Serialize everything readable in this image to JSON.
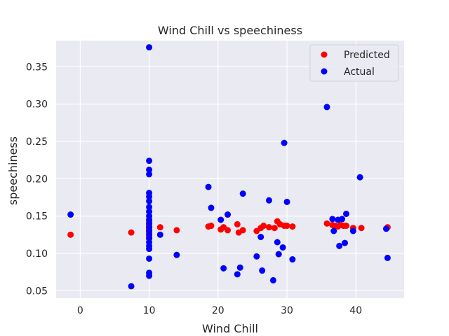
{
  "chart_data": {
    "type": "scatter",
    "title": "Wind Chill vs speechiness",
    "xlabel": "Wind Chill",
    "ylabel": "speechiness",
    "xlim": [
      -3.5,
      47
    ],
    "ylim": [
      0.04,
      0.385
    ],
    "xticks": [
      0,
      10,
      20,
      30,
      40
    ],
    "yticks": [
      0.05,
      0.1,
      0.15,
      0.2,
      0.25,
      0.3,
      0.35
    ],
    "grid": true,
    "legend_position": "top-right",
    "colors": {
      "Predicted": "#ff0000",
      "Actual": "#0000ff",
      "plot_bg": "#eaeaf2",
      "grid": "#ffffff"
    },
    "series": [
      {
        "name": "Predicted",
        "color": "#ff0000",
        "points": [
          [
            -1.4,
            0.125
          ],
          [
            7.4,
            0.128
          ],
          [
            10.0,
            0.122
          ],
          [
            10.0,
            0.125
          ],
          [
            10.0,
            0.128
          ],
          [
            10.0,
            0.13
          ],
          [
            10.0,
            0.132
          ],
          [
            10.0,
            0.134
          ],
          [
            10.0,
            0.136
          ],
          [
            10.0,
            0.138
          ],
          [
            10.0,
            0.14
          ],
          [
            10.0,
            0.143
          ],
          [
            11.6,
            0.135
          ],
          [
            14.0,
            0.131
          ],
          [
            18.6,
            0.136
          ],
          [
            19.0,
            0.137
          ],
          [
            20.4,
            0.132
          ],
          [
            20.8,
            0.135
          ],
          [
            21.4,
            0.131
          ],
          [
            22.8,
            0.139
          ],
          [
            23.0,
            0.128
          ],
          [
            23.6,
            0.131
          ],
          [
            25.6,
            0.13
          ],
          [
            26.2,
            0.134
          ],
          [
            26.6,
            0.137
          ],
          [
            27.4,
            0.135
          ],
          [
            28.2,
            0.134
          ],
          [
            28.6,
            0.143
          ],
          [
            29.0,
            0.139
          ],
          [
            29.6,
            0.137
          ],
          [
            30.0,
            0.137
          ],
          [
            30.8,
            0.136
          ],
          [
            35.8,
            0.14
          ],
          [
            36.6,
            0.138
          ],
          [
            37.0,
            0.137
          ],
          [
            37.4,
            0.136
          ],
          [
            37.8,
            0.138
          ],
          [
            38.2,
            0.137
          ],
          [
            38.6,
            0.137
          ],
          [
            39.6,
            0.134
          ],
          [
            40.8,
            0.134
          ],
          [
            44.6,
            0.135
          ]
        ]
      },
      {
        "name": "Actual",
        "color": "#0000ff",
        "points": [
          [
            -1.4,
            0.152
          ],
          [
            7.4,
            0.056
          ],
          [
            10.0,
            0.376
          ],
          [
            10.0,
            0.224
          ],
          [
            10.0,
            0.212
          ],
          [
            10.0,
            0.206
          ],
          [
            10.0,
            0.181
          ],
          [
            10.0,
            0.176
          ],
          [
            10.0,
            0.17
          ],
          [
            10.0,
            0.162
          ],
          [
            10.0,
            0.156
          ],
          [
            10.0,
            0.15
          ],
          [
            10.0,
            0.145
          ],
          [
            10.0,
            0.14
          ],
          [
            10.0,
            0.135
          ],
          [
            10.0,
            0.13
          ],
          [
            10.0,
            0.125
          ],
          [
            10.0,
            0.12
          ],
          [
            10.0,
            0.115
          ],
          [
            10.0,
            0.11
          ],
          [
            10.0,
            0.106
          ],
          [
            10.0,
            0.093
          ],
          [
            10.0,
            0.074
          ],
          [
            10.0,
            0.07
          ],
          [
            11.6,
            0.125
          ],
          [
            14.0,
            0.098
          ],
          [
            18.6,
            0.189
          ],
          [
            19.0,
            0.161
          ],
          [
            20.4,
            0.145
          ],
          [
            20.8,
            0.08
          ],
          [
            21.4,
            0.152
          ],
          [
            22.8,
            0.072
          ],
          [
            23.2,
            0.081
          ],
          [
            23.6,
            0.18
          ],
          [
            25.6,
            0.096
          ],
          [
            26.2,
            0.122
          ],
          [
            26.4,
            0.077
          ],
          [
            27.4,
            0.171
          ],
          [
            28.0,
            0.064
          ],
          [
            28.6,
            0.115
          ],
          [
            28.8,
            0.099
          ],
          [
            29.4,
            0.108
          ],
          [
            29.6,
            0.248
          ],
          [
            30.0,
            0.169
          ],
          [
            30.8,
            0.092
          ],
          [
            35.8,
            0.296
          ],
          [
            36.6,
            0.146
          ],
          [
            36.8,
            0.13
          ],
          [
            37.4,
            0.145
          ],
          [
            37.6,
            0.11
          ],
          [
            38.0,
            0.146
          ],
          [
            38.4,
            0.114
          ],
          [
            38.6,
            0.153
          ],
          [
            39.6,
            0.13
          ],
          [
            40.6,
            0.202
          ],
          [
            44.4,
            0.133
          ],
          [
            44.6,
            0.094
          ]
        ]
      }
    ]
  }
}
